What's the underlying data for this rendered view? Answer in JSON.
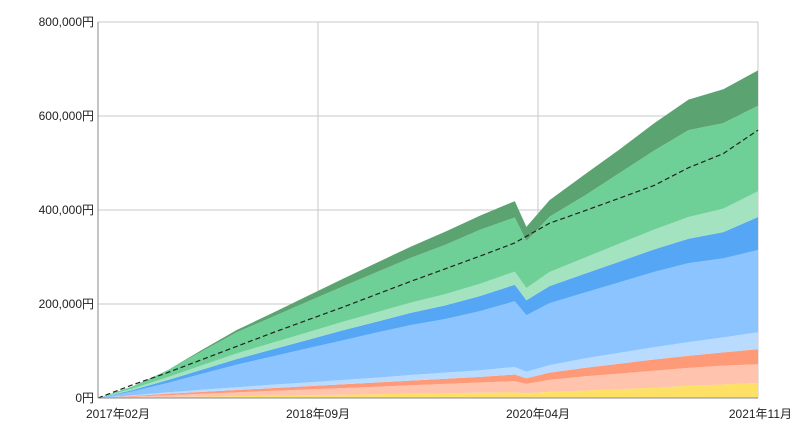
{
  "chart_data": {
    "type": "area",
    "stacked": true,
    "x": [
      "2017-02",
      "2017-05",
      "2017-08",
      "2017-11",
      "2018-02",
      "2018-05",
      "2018-08",
      "2018-11",
      "2019-02",
      "2019-05",
      "2019-08",
      "2019-11",
      "2020-02",
      "2020-03",
      "2020-05",
      "2020-08",
      "2020-11",
      "2021-02",
      "2021-05",
      "2021-08",
      "2021-11"
    ],
    "x_tick_labels": [
      "2017年02月",
      "2018年09月",
      "2020年04月",
      "2021年11月"
    ],
    "x_tick_positions": [
      "2017-02",
      "2018-09",
      "2020-04",
      "2021-11"
    ],
    "y_tick_labels": [
      "0円",
      "200,000円",
      "400,000円",
      "600,000円",
      "800,000円"
    ],
    "ylim": [
      0,
      800000
    ],
    "grid": true,
    "legend": "none",
    "series": [
      {
        "color": "#FFE066",
        "values": [
          0,
          1000,
          2000,
          3000,
          4000,
          5000,
          6000,
          7000,
          8000,
          9000,
          10000,
          11000,
          12000,
          10000,
          13000,
          16000,
          19000,
          22000,
          26000,
          29000,
          32000
        ]
      },
      {
        "color": "#FFC3AE",
        "values": [
          0,
          2000,
          4000,
          6000,
          8000,
          10000,
          12000,
          14000,
          16000,
          18000,
          20000,
          22000,
          24000,
          20000,
          26000,
          30000,
          33000,
          36000,
          38000,
          40000,
          40000
        ]
      },
      {
        "color": "#FF9A78",
        "values": [
          0,
          1500,
          3000,
          4000,
          5000,
          6000,
          7000,
          8000,
          9000,
          10000,
          11000,
          12000,
          14000,
          12000,
          15000,
          18000,
          21000,
          24000,
          26000,
          28000,
          32000
        ]
      },
      {
        "color": "#B9DBFF",
        "values": [
          0,
          1500,
          3000,
          4500,
          6000,
          7000,
          8000,
          9000,
          10000,
          12000,
          13000,
          14000,
          16000,
          14000,
          16000,
          20000,
          23000,
          26000,
          29000,
          32000,
          36000
        ]
      },
      {
        "color": "#8CC4FF",
        "values": [
          0,
          8000,
          20000,
          34000,
          48000,
          60000,
          72000,
          84000,
          96000,
          106000,
          114000,
          126000,
          140000,
          120000,
          132000,
          140000,
          150000,
          160000,
          168000,
          168000,
          175000
        ]
      },
      {
        "color": "#55A7F5",
        "values": [
          0,
          3000,
          6000,
          9000,
          12000,
          15000,
          18000,
          21000,
          23000,
          26000,
          29000,
          32000,
          35000,
          32000,
          36000,
          40000,
          44000,
          48000,
          52000,
          56000,
          70000
        ]
      },
      {
        "color": "#A3E3BF",
        "values": [
          0,
          3000,
          6000,
          9000,
          12000,
          14000,
          16000,
          18000,
          20000,
          22000,
          24000,
          26000,
          28000,
          26000,
          30000,
          34000,
          38000,
          42000,
          46000,
          50000,
          55000
        ]
      },
      {
        "color": "#6FD097",
        "values": [
          0,
          5000,
          15000,
          30000,
          45000,
          55000,
          65000,
          75000,
          85000,
          95000,
          105000,
          115000,
          115000,
          100000,
          118000,
          132000,
          150000,
          168000,
          185000,
          182000,
          182000
        ]
      },
      {
        "color": "#5CA372",
        "values": [
          0,
          0,
          0,
          3000,
          5000,
          8000,
          12000,
          16000,
          20000,
          24000,
          28000,
          30000,
          35000,
          30000,
          35000,
          45000,
          50000,
          58000,
          65000,
          72000,
          75000
        ]
      }
    ],
    "trendline": {
      "style": "dashed",
      "color": "#222222",
      "values": [
        0,
        28000,
        54000,
        82000,
        110000,
        138000,
        165000,
        192000,
        220000,
        248000,
        275000,
        302000,
        330000,
        344000,
        372000,
        398000,
        425000,
        452000,
        490000,
        520000,
        570000
      ]
    }
  }
}
